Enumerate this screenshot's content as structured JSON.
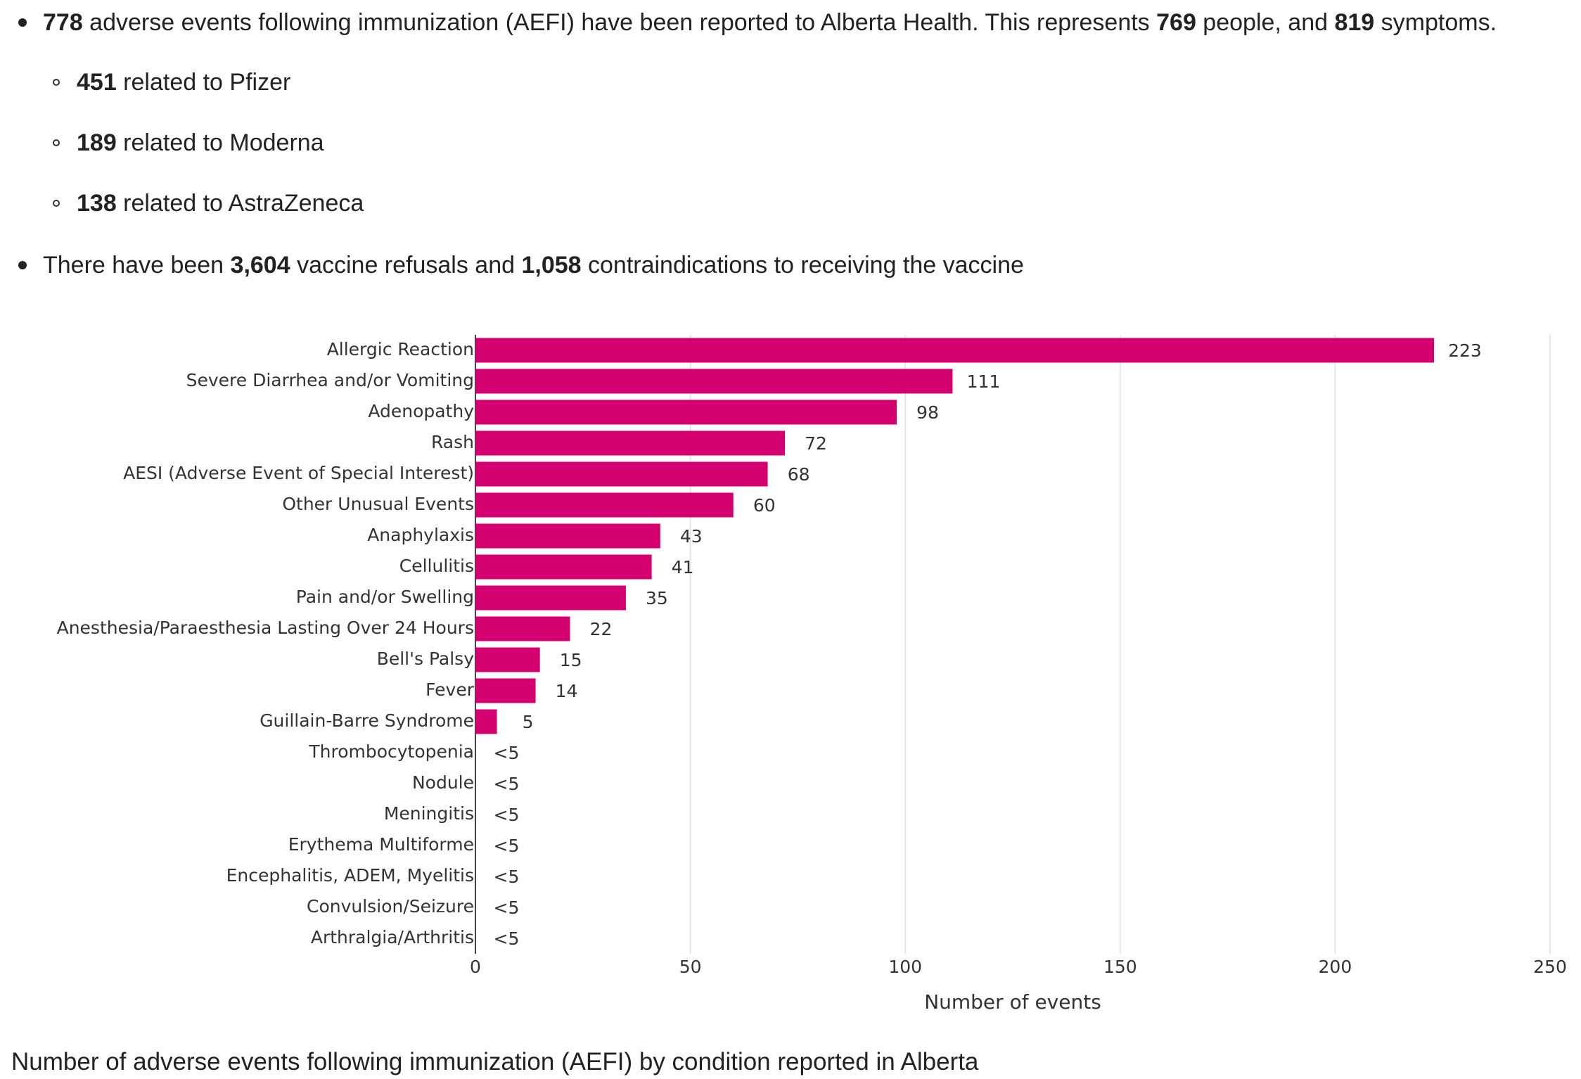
{
  "bullets": [
    {
      "segments": [
        {
          "text": "778",
          "bold": true
        },
        {
          "text": " adverse events following immunization (AEFI) have been reported to Alberta Health. This represents "
        },
        {
          "text": "769",
          "bold": true
        },
        {
          "text": " people, and "
        },
        {
          "text": "819",
          "bold": true
        },
        {
          "text": " symptoms."
        }
      ],
      "items": [
        {
          "segments": [
            {
              "text": "451",
              "bold": true
            },
            {
              "text": " related to Pfizer"
            }
          ]
        },
        {
          "segments": [
            {
              "text": "189",
              "bold": true
            },
            {
              "text": " related to Moderna"
            }
          ]
        },
        {
          "segments": [
            {
              "text": "138",
              "bold": true
            },
            {
              "text": " related to AstraZeneca"
            }
          ]
        }
      ]
    },
    {
      "segments": [
        {
          "text": "There have been "
        },
        {
          "text": "3,604",
          "bold": true
        },
        {
          "text": " vaccine refusals and "
        },
        {
          "text": "1,058",
          "bold": true
        },
        {
          "text": " contraindications to receiving the vaccine"
        }
      ]
    }
  ],
  "chart_data": {
    "type": "barh",
    "categories": [
      "Allergic Reaction",
      "Severe Diarrhea and/or Vomiting",
      "Adenopathy",
      "Rash",
      "AESI (Adverse Event of Special Interest)",
      "Other Unusual Events",
      "Anaphylaxis",
      "Cellulitis",
      "Pain and/or Swelling",
      "Anesthesia/Paraesthesia Lasting Over 24 Hours",
      "Bell's Palsy",
      "Fever",
      "Guillain-Barre Syndrome",
      "Thrombocytopenia",
      "Nodule",
      "Meningitis",
      "Erythema Multiforme",
      "Encephalitis, ADEM, Myelitis",
      "Convulsion/Seizure",
      "Arthralgia/Arthritis"
    ],
    "values": [
      223,
      111,
      98,
      72,
      68,
      60,
      43,
      41,
      35,
      22,
      15,
      14,
      5,
      null,
      null,
      null,
      null,
      null,
      null,
      null
    ],
    "value_labels": [
      "223",
      "111",
      "98",
      "72",
      "68",
      "60",
      "43",
      "41",
      "35",
      "22",
      "15",
      "14",
      "5",
      "<5",
      "<5",
      "<5",
      "<5",
      "<5",
      "<5",
      "<5"
    ],
    "color": "#d4006f",
    "xlim": [
      0,
      250
    ],
    "xticks": [
      0,
      50,
      100,
      150,
      200,
      250
    ],
    "grid": true,
    "xlabel": "Number of events"
  },
  "caption": "Number of adverse events following immunization (AEFI) by condition reported in Alberta"
}
